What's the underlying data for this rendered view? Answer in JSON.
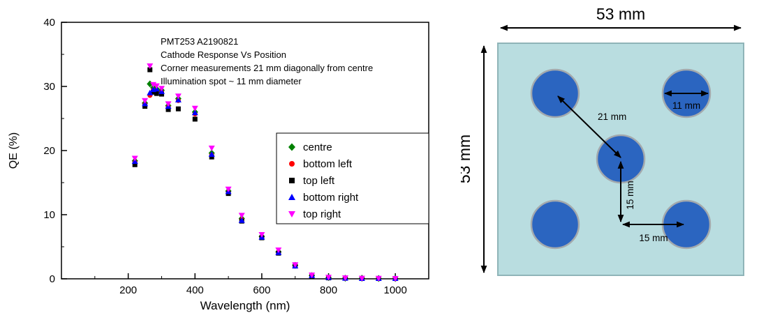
{
  "figure": {
    "background": "#ffffff"
  },
  "chart_data": {
    "type": "scatter",
    "title": "",
    "xlabel": "Wavelength (nm)",
    "ylabel": "QE (%)",
    "xlim": [
      0,
      1100
    ],
    "ylim": [
      0,
      40
    ],
    "xticks": [
      200,
      400,
      600,
      800,
      1000
    ],
    "xminor": [
      100,
      300,
      500,
      700,
      900
    ],
    "yticks": [
      0,
      10,
      20,
      30,
      40
    ],
    "yminor": [
      5,
      15,
      25,
      35
    ],
    "grid": false,
    "legend_position": "middle-right",
    "annotations": [
      "PMT253 A2190821",
      "Cathode Response Vs Position",
      "Corner measurements 21 mm diagonally from centre",
      "Illumination spot ~ 11 mm diameter"
    ],
    "x": [
      220,
      250,
      265,
      275,
      285,
      300,
      320,
      350,
      400,
      450,
      500,
      540,
      600,
      650,
      700,
      750,
      800,
      850,
      900,
      950,
      1000
    ],
    "series": [
      {
        "name": "centre",
        "marker": "diamond",
        "color": "#008000",
        "values": [
          18.4,
          27.4,
          30.4,
          29.8,
          29.6,
          29.4,
          27.0,
          28.1,
          26.0,
          19.6,
          13.7,
          9.4,
          6.6,
          4.2,
          2.1,
          0.5,
          0.2,
          0.1,
          0.1,
          0.05,
          0.05
        ]
      },
      {
        "name": "bottom left",
        "marker": "circle",
        "color": "#ff0000",
        "values": [
          18.2,
          27.2,
          28.6,
          29.4,
          29.3,
          29.1,
          26.8,
          27.8,
          25.7,
          19.3,
          13.5,
          9.2,
          6.5,
          4.1,
          2.0,
          0.5,
          0.2,
          0.1,
          0.05,
          0.05,
          0.05
        ]
      },
      {
        "name": "top left",
        "marker": "square",
        "color": "#000000",
        "values": [
          17.8,
          26.9,
          32.6,
          29.1,
          28.9,
          28.8,
          26.4,
          26.5,
          24.9,
          19.0,
          13.3,
          9.0,
          6.4,
          4.0,
          2.0,
          0.4,
          0.15,
          0.1,
          0.05,
          0.05,
          0.05
        ]
      },
      {
        "name": "bottom right",
        "marker": "triangle-up",
        "color": "#0000ff",
        "values": [
          18.3,
          27.3,
          29.0,
          29.5,
          29.6,
          29.2,
          26.9,
          27.9,
          25.9,
          19.4,
          13.6,
          9.1,
          6.5,
          4.1,
          2.0,
          0.5,
          0.2,
          0.1,
          0.05,
          0.05,
          0.05
        ]
      },
      {
        "name": "top right",
        "marker": "triangle-down",
        "color": "#ff00ff",
        "values": [
          18.8,
          27.8,
          33.2,
          30.3,
          30.1,
          29.7,
          27.3,
          28.5,
          26.6,
          20.4,
          14.0,
          9.9,
          6.9,
          4.5,
          2.2,
          0.6,
          0.25,
          0.15,
          0.1,
          0.08,
          0.05
        ]
      }
    ]
  },
  "diagram": {
    "labels": {
      "width": "53 mm",
      "height": "53 mm",
      "diagonal": "21 mm",
      "vertical": "15 mm",
      "horizontal": "15 mm",
      "spot": "11 mm"
    },
    "colors": {
      "square": "#b9dde0",
      "square_border": "#8fb4b8",
      "spot": "#2b65c0",
      "spot_border": "#a3a9ad"
    }
  }
}
